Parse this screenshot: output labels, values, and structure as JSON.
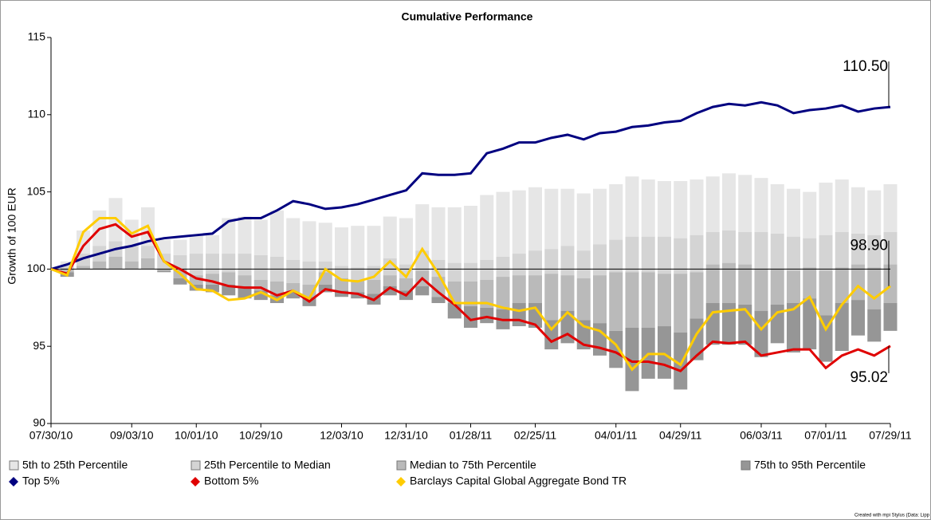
{
  "chart_data": {
    "type": "line",
    "title": "Cumulative Performance",
    "y_label": "Growth of 100 EUR",
    "footer": "Created with mpi Stylus (Data: Lipp",
    "categories": [
      "07/30/10",
      null,
      null,
      null,
      null,
      "09/03/10",
      null,
      null,
      null,
      "10/01/10",
      null,
      null,
      null,
      "10/29/10",
      null,
      null,
      null,
      null,
      "12/03/10",
      null,
      null,
      null,
      "12/31/10",
      null,
      null,
      null,
      "01/28/11",
      null,
      null,
      null,
      "02/25/11",
      null,
      null,
      null,
      null,
      "04/01/11",
      null,
      null,
      null,
      "04/29/11",
      null,
      null,
      null,
      null,
      "06/03/11",
      null,
      null,
      null,
      "07/01/11",
      null,
      null,
      null,
      "07/29/11"
    ],
    "ylim": [
      90,
      115
    ],
    "yticks": [
      90,
      95,
      100,
      105,
      110,
      115
    ],
    "reference_line": 100,
    "bands": [
      {
        "name": "5th to 25th Percentile",
        "color": "#e6e6e6",
        "high": [
          100,
          100.5,
          102.5,
          103.8,
          104.6,
          103.2,
          104.0,
          101.9,
          101.9,
          102.2,
          102.2,
          103.3,
          103.4,
          103.2,
          103.8,
          103.3,
          103.1,
          103.0,
          102.7,
          102.8,
          102.8,
          103.4,
          103.3,
          104.2,
          104.0,
          104.0,
          104.1,
          104.8,
          105.0,
          105.1,
          105.3,
          105.2,
          105.2,
          104.9,
          105.2,
          105.5,
          106.0,
          105.8,
          105.7,
          105.7,
          105.8,
          106.0,
          106.2,
          106.1,
          105.9,
          105.5,
          105.2,
          105.0,
          105.6,
          105.8,
          105.3,
          105.1,
          105.5
        ],
        "low": [
          100,
          100.2,
          101.0,
          101.5,
          101.8,
          101.5,
          101.5,
          101.0,
          100.9,
          101.0,
          101.0,
          101.0,
          101.0,
          100.9,
          100.8,
          100.6,
          100.5,
          100.5,
          100.2,
          100.1,
          100.2,
          100.7,
          100.3,
          101.2,
          100.6,
          100.4,
          100.4,
          100.6,
          100.8,
          101.0,
          101.2,
          101.3,
          101.5,
          101.2,
          101.6,
          101.9,
          102.1,
          102.1,
          102.1,
          102.0,
          102.2,
          102.4,
          102.5,
          102.4,
          102.4,
          102.3,
          102.1,
          102.0,
          102.2,
          102.4,
          102.3,
          102.2,
          102.4
        ]
      },
      {
        "name": "25th Percentile to Median",
        "color": "#d4d4d4",
        "high": [
          100,
          100.2,
          101.0,
          101.5,
          101.8,
          101.5,
          101.5,
          101.0,
          100.9,
          101.0,
          101.0,
          101.0,
          101.0,
          100.9,
          100.8,
          100.6,
          100.5,
          100.5,
          100.2,
          100.1,
          100.2,
          100.7,
          100.3,
          101.2,
          100.6,
          100.4,
          100.4,
          100.6,
          100.8,
          101.0,
          101.2,
          101.3,
          101.5,
          101.2,
          101.6,
          101.9,
          102.1,
          102.1,
          102.1,
          102.0,
          102.2,
          102.4,
          102.5,
          102.4,
          102.4,
          102.3,
          102.1,
          102.0,
          102.2,
          102.4,
          102.3,
          102.2,
          102.4
        ],
        "low": [
          100,
          100.0,
          100.2,
          100.5,
          100.8,
          100.5,
          100.7,
          100.0,
          100.0,
          99.6,
          99.7,
          99.8,
          99.6,
          99.3,
          99.2,
          99.1,
          99.0,
          99.8,
          99.4,
          99.3,
          99.3,
          99.6,
          99.4,
          99.9,
          99.5,
          99.2,
          99.2,
          99.3,
          99.5,
          99.6,
          99.6,
          99.7,
          99.6,
          99.4,
          99.6,
          99.8,
          99.8,
          99.8,
          99.7,
          99.7,
          99.8,
          100.3,
          100.4,
          100.3,
          100.0,
          100.0,
          99.9,
          100.1,
          99.9,
          100.1,
          100.3,
          100.1,
          100.3
        ]
      },
      {
        "name": "Median to 75th Percentile",
        "color": "#bababa",
        "high": [
          100,
          100.0,
          100.2,
          100.5,
          100.8,
          100.5,
          100.7,
          100.0,
          100.0,
          99.6,
          99.7,
          99.8,
          99.6,
          99.3,
          99.2,
          99.1,
          99.0,
          99.8,
          99.4,
          99.3,
          99.3,
          99.6,
          99.4,
          99.9,
          99.5,
          99.2,
          99.2,
          99.3,
          99.5,
          99.6,
          99.6,
          99.7,
          99.6,
          99.4,
          99.6,
          99.8,
          99.8,
          99.8,
          99.7,
          99.7,
          99.8,
          100.3,
          100.4,
          100.3,
          100.0,
          100.0,
          99.9,
          100.1,
          99.9,
          100.1,
          100.3,
          100.1,
          100.3
        ],
        "low": [
          100,
          99.8,
          100.0,
          100.0,
          100.0,
          100.0,
          100.0,
          99.9,
          99.4,
          99.0,
          99.0,
          99.0,
          98.9,
          98.6,
          98.3,
          98.5,
          98.2,
          99.0,
          98.6,
          98.5,
          98.4,
          98.9,
          98.6,
          98.9,
          98.2,
          97.8,
          97.6,
          97.5,
          97.4,
          97.8,
          97.8,
          96.7,
          97.3,
          96.7,
          96.5,
          96.0,
          96.2,
          96.2,
          96.3,
          95.9,
          96.8,
          97.8,
          97.8,
          97.7,
          97.3,
          97.7,
          97.8,
          98.1,
          97.0,
          97.8,
          98.0,
          97.4,
          97.8
        ]
      },
      {
        "name": "75th to 95th Percentile",
        "color": "#969696",
        "high": [
          100,
          99.8,
          100.0,
          100.0,
          100.0,
          100.0,
          100.0,
          99.9,
          99.4,
          99.0,
          99.0,
          99.0,
          98.9,
          98.6,
          98.3,
          98.5,
          98.2,
          99.0,
          98.6,
          98.5,
          98.4,
          98.9,
          98.6,
          98.9,
          98.2,
          97.8,
          97.6,
          97.5,
          97.4,
          97.8,
          97.8,
          96.7,
          97.3,
          96.7,
          96.5,
          96.0,
          96.2,
          96.2,
          96.3,
          95.9,
          96.8,
          97.8,
          97.8,
          97.7,
          97.3,
          97.7,
          97.8,
          98.1,
          97.0,
          97.8,
          98.0,
          97.4,
          97.8
        ],
        "low": [
          100,
          99.5,
          100.0,
          100.0,
          100.0,
          100.0,
          100.0,
          99.8,
          99.0,
          98.6,
          98.5,
          98.3,
          98.1,
          98.0,
          97.8,
          98.1,
          97.6,
          98.5,
          98.2,
          98.1,
          97.7,
          98.3,
          98.0,
          98.3,
          97.8,
          96.8,
          96.2,
          96.5,
          96.1,
          96.3,
          96.2,
          94.8,
          95.2,
          94.8,
          94.4,
          93.6,
          92.1,
          92.9,
          92.9,
          92.2,
          94.1,
          95.1,
          95.1,
          95.1,
          94.3,
          95.2,
          94.6,
          94.8,
          94.0,
          94.7,
          95.7,
          95.3,
          96.0
        ]
      }
    ],
    "series": [
      {
        "name": "Top 5%",
        "color": "#000080",
        "values": [
          100,
          100.3,
          100.7,
          101.0,
          101.3,
          101.5,
          101.8,
          102.0,
          102.1,
          102.2,
          102.3,
          103.1,
          103.3,
          103.3,
          103.8,
          104.4,
          104.2,
          103.9,
          104.0,
          104.2,
          104.5,
          104.8,
          105.1,
          106.2,
          106.1,
          106.1,
          106.2,
          107.5,
          107.8,
          108.2,
          108.2,
          108.5,
          108.7,
          108.4,
          108.8,
          108.9,
          109.2,
          109.3,
          109.5,
          109.6,
          110.1,
          110.5,
          110.7,
          110.6,
          110.8,
          110.6,
          110.1,
          110.3,
          110.4,
          110.6,
          110.2,
          110.4,
          110.5
        ],
        "value_labels": [
          null,
          null,
          null,
          null,
          null,
          null,
          null,
          null,
          null,
          null,
          null,
          null,
          null,
          null,
          null,
          null,
          null,
          null,
          null,
          null,
          null,
          null,
          null,
          null,
          null,
          null,
          null,
          null,
          null,
          null,
          null,
          null,
          null,
          null,
          null,
          null,
          null,
          null,
          null,
          null,
          null,
          null,
          null,
          null,
          null,
          null,
          null,
          null,
          null,
          null,
          null,
          null,
          "110.50"
        ]
      },
      {
        "name": "Bottom 5%",
        "color": "#e00000",
        "values": [
          100,
          99.7,
          101.5,
          102.6,
          102.9,
          102.1,
          102.4,
          100.5,
          100.0,
          99.4,
          99.2,
          98.9,
          98.8,
          98.8,
          98.3,
          98.6,
          97.9,
          98.7,
          98.5,
          98.4,
          98.0,
          98.8,
          98.3,
          99.4,
          98.5,
          97.7,
          96.7,
          96.9,
          96.7,
          96.7,
          96.4,
          95.3,
          95.8,
          95.1,
          94.9,
          94.6,
          94.0,
          94.0,
          93.8,
          93.4,
          94.4,
          95.3,
          95.2,
          95.3,
          94.4,
          94.6,
          94.8,
          94.8,
          93.6,
          94.4,
          94.8,
          94.4,
          95.02
        ],
        "value_labels": [
          null,
          null,
          null,
          null,
          null,
          null,
          null,
          null,
          null,
          null,
          null,
          null,
          null,
          null,
          null,
          null,
          null,
          null,
          null,
          null,
          null,
          null,
          null,
          null,
          null,
          null,
          null,
          null,
          null,
          null,
          null,
          null,
          null,
          null,
          null,
          null,
          null,
          null,
          null,
          null,
          null,
          null,
          null,
          null,
          null,
          null,
          null,
          null,
          null,
          null,
          null,
          null,
          "95.02"
        ]
      },
      {
        "name": "Barclays Capital Global Aggregate Bond TR",
        "color": "#ffcc00",
        "values": [
          100,
          99.6,
          102.4,
          103.3,
          103.3,
          102.3,
          102.8,
          100.5,
          99.7,
          98.7,
          98.6,
          98.0,
          98.1,
          98.5,
          98.0,
          98.6,
          98.1,
          100.0,
          99.3,
          99.2,
          99.5,
          100.5,
          99.5,
          101.3,
          99.7,
          97.8,
          97.8,
          97.8,
          97.5,
          97.3,
          97.5,
          96.1,
          97.2,
          96.3,
          96.0,
          95.1,
          93.5,
          94.5,
          94.5,
          93.8,
          95.8,
          97.2,
          97.3,
          97.4,
          96.1,
          97.2,
          97.4,
          98.2,
          96.1,
          97.7,
          98.9,
          98.1,
          98.9
        ],
        "value_labels": [
          null,
          null,
          null,
          null,
          null,
          null,
          null,
          null,
          null,
          null,
          null,
          null,
          null,
          null,
          null,
          null,
          null,
          null,
          null,
          null,
          null,
          null,
          null,
          null,
          null,
          null,
          null,
          null,
          null,
          null,
          null,
          null,
          null,
          null,
          null,
          null,
          null,
          null,
          null,
          null,
          null,
          null,
          null,
          null,
          null,
          null,
          null,
          null,
          null,
          null,
          null,
          null,
          "98.90"
        ]
      }
    ]
  }
}
